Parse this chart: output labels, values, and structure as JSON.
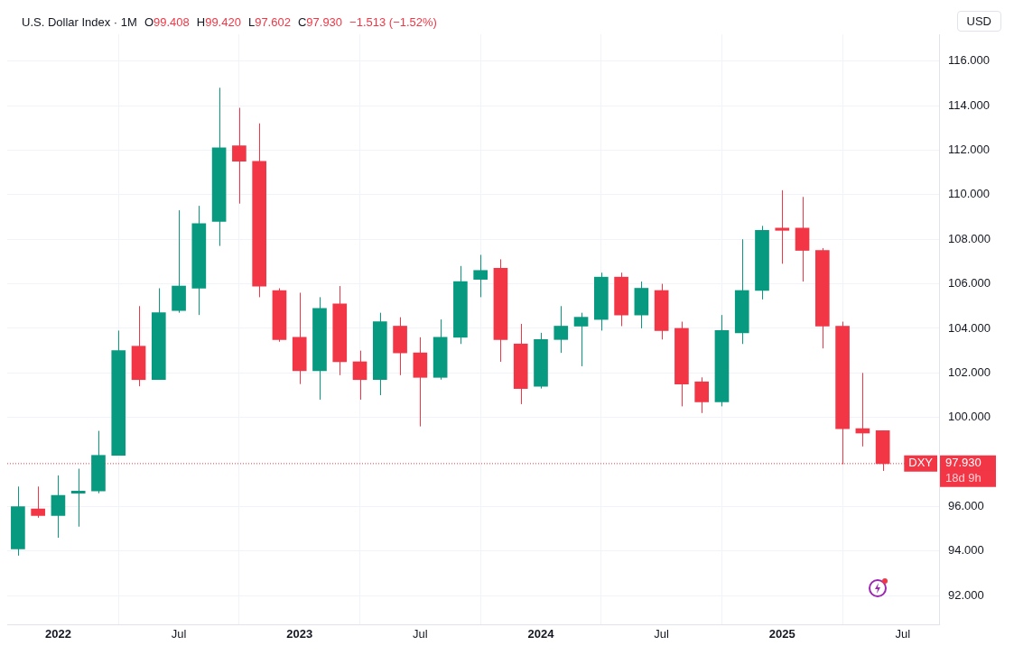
{
  "chart_data": {
    "type": "candlestick",
    "title": "U.S. Dollar Index · 1M",
    "ylabel": "USD",
    "annotations": [
      "O99.408",
      "H99.420",
      "L97.602",
      "C97.930",
      "−1.513 (−1.52%)",
      "97.930",
      "18d 9h"
    ],
    "x": [
      "2021-11",
      "2021-12",
      "2022-01",
      "2022-02",
      "2022-03",
      "2022-04",
      "2022-05",
      "2022-06",
      "2022-07",
      "2022-08",
      "2022-09",
      "2022-10",
      "2022-11",
      "2022-12",
      "2023-01",
      "2023-02",
      "2023-03",
      "2023-04",
      "2023-05",
      "2023-06",
      "2023-07",
      "2023-08",
      "2023-09",
      "2023-10",
      "2023-11",
      "2023-12",
      "2024-01",
      "2024-02",
      "2024-03",
      "2024-04",
      "2024-05",
      "2024-06",
      "2024-07",
      "2024-08",
      "2024-09",
      "2024-10",
      "2024-11",
      "2024-12",
      "2025-01",
      "2025-02",
      "2025-03",
      "2025-04",
      "2025-05",
      "2025-06"
    ],
    "ohlc": [
      [
        94.1,
        96.9,
        93.8,
        96.0
      ],
      [
        95.9,
        96.9,
        95.5,
        95.6
      ],
      [
        95.6,
        97.4,
        94.6,
        96.5
      ],
      [
        96.6,
        97.7,
        95.1,
        96.7
      ],
      [
        96.7,
        99.4,
        96.6,
        98.3
      ],
      [
        98.3,
        103.9,
        98.3,
        103.0
      ],
      [
        103.2,
        105.0,
        101.4,
        101.7
      ],
      [
        101.7,
        105.8,
        101.7,
        104.7
      ],
      [
        104.8,
        109.3,
        104.7,
        105.9
      ],
      [
        105.8,
        109.5,
        104.6,
        108.7
      ],
      [
        108.8,
        114.8,
        107.7,
        112.1
      ],
      [
        112.2,
        113.9,
        109.6,
        111.5
      ],
      [
        111.5,
        113.2,
        105.4,
        105.9
      ],
      [
        105.7,
        105.8,
        103.4,
        103.5
      ],
      [
        103.6,
        105.6,
        101.5,
        102.1
      ],
      [
        102.1,
        105.4,
        100.8,
        104.9
      ],
      [
        105.1,
        105.9,
        101.9,
        102.5
      ],
      [
        102.5,
        103.0,
        100.8,
        101.7
      ],
      [
        101.7,
        104.7,
        101.0,
        104.3
      ],
      [
        104.1,
        104.5,
        101.9,
        102.9
      ],
      [
        102.9,
        103.6,
        99.6,
        101.8
      ],
      [
        101.8,
        104.4,
        101.7,
        103.6
      ],
      [
        103.6,
        106.8,
        103.3,
        106.1
      ],
      [
        106.2,
        107.3,
        105.4,
        106.6
      ],
      [
        106.7,
        107.1,
        102.5,
        103.5
      ],
      [
        103.3,
        104.2,
        100.6,
        101.3
      ],
      [
        101.4,
        103.8,
        101.3,
        103.5
      ],
      [
        103.5,
        105.0,
        102.9,
        104.1
      ],
      [
        104.1,
        104.7,
        102.3,
        104.5
      ],
      [
        104.4,
        106.5,
        103.9,
        106.3
      ],
      [
        106.3,
        106.5,
        104.1,
        104.6
      ],
      [
        104.6,
        106.1,
        104.0,
        105.8
      ],
      [
        105.7,
        106.0,
        103.5,
        103.9
      ],
      [
        104.0,
        104.3,
        100.5,
        101.5
      ],
      [
        101.6,
        101.8,
        100.2,
        100.7
      ],
      [
        100.7,
        104.6,
        100.5,
        103.9
      ],
      [
        103.8,
        108.0,
        103.3,
        105.7
      ],
      [
        105.7,
        108.6,
        105.3,
        108.4
      ],
      [
        108.5,
        110.2,
        106.9,
        108.4
      ],
      [
        108.5,
        109.9,
        106.1,
        107.5
      ],
      [
        107.5,
        107.6,
        103.1,
        104.1
      ],
      [
        104.1,
        104.3,
        97.9,
        99.5
      ],
      [
        99.5,
        102.0,
        98.7,
        99.3
      ],
      [
        99.408,
        99.42,
        97.602,
        97.93
      ]
    ],
    "colors": [
      "#089981",
      "#f23645",
      "#089981",
      "#089981",
      "#089981",
      "#089981",
      "#f23645",
      "#089981",
      "#089981",
      "#089981",
      "#089981",
      "#f23645",
      "#f23645",
      "#f23645",
      "#f23645",
      "#089981",
      "#f23645",
      "#f23645",
      "#089981",
      "#f23645",
      "#f23645",
      "#089981",
      "#089981",
      "#089981",
      "#f23645",
      "#f23645",
      "#089981",
      "#089981",
      "#089981",
      "#089981",
      "#f23645",
      "#089981",
      "#f23645",
      "#f23645",
      "#f23645",
      "#089981",
      "#089981",
      "#089981",
      "#f23645",
      "#f23645",
      "#f23645",
      "#f23645",
      "#f23645",
      "#f23645"
    ],
    "xlim": [
      "2021-10-15",
      "2025-08-25"
    ],
    "xticks": [
      {
        "value": "2022-01",
        "label": "2022"
      },
      {
        "value": "2022-07",
        "label": "Jul"
      },
      {
        "value": "2023-01",
        "label": "2023"
      },
      {
        "value": "2023-07",
        "label": "Jul"
      },
      {
        "value": "2024-01",
        "label": "2024"
      },
      {
        "value": "2024-07",
        "label": "Jul"
      },
      {
        "value": "2025-01",
        "label": "2025"
      },
      {
        "value": "2025-07",
        "label": "Jul"
      }
    ],
    "ylim": [
      90.7,
      117.2
    ],
    "yticks": [
      {
        "value": 92,
        "label": "92.000"
      },
      {
        "value": 94,
        "label": "94.000"
      },
      {
        "value": 96,
        "label": "96.000"
      },
      {
        "value": 100,
        "label": "100.000"
      },
      {
        "value": 102,
        "label": "102.000"
      },
      {
        "value": 104,
        "label": "104.000"
      },
      {
        "value": 106,
        "label": "106.000"
      },
      {
        "value": 108,
        "label": "108.000"
      },
      {
        "value": 110,
        "label": "110.000"
      },
      {
        "value": 112,
        "label": "112.000"
      },
      {
        "value": 114,
        "label": "114.000"
      },
      {
        "value": 116,
        "label": "116.000"
      }
    ],
    "ref_lines": [
      {
        "axis": "y",
        "value": 97.93,
        "label": "DXY",
        "color": "#f23645",
        "line_style": "dotted"
      }
    ],
    "grid": true,
    "legend": false
  }
}
